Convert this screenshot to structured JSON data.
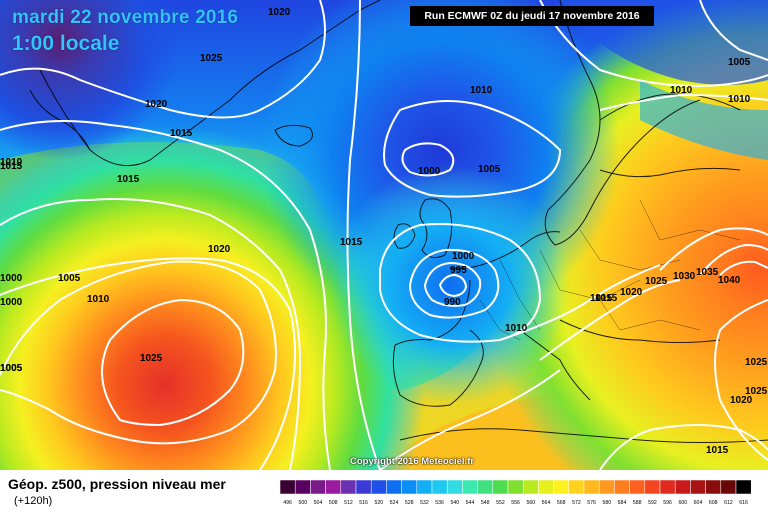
{
  "header": {
    "date": "mardi 22 novembre 2016",
    "time": "1:00 locale"
  },
  "run_info": "Run ECMWF 0Z du jeudi 17 novembre 2016",
  "copyright": "Copyright 2016 Meteociel.fr",
  "legend": {
    "title": "Géop. z500, pression niveau mer",
    "lead": "(+120h)",
    "ticks": [
      "496",
      "500",
      "504",
      "508",
      "512",
      "516",
      "520",
      "524",
      "528",
      "532",
      "536",
      "540",
      "544",
      "548",
      "552",
      "556",
      "560",
      "564",
      "568",
      "572",
      "576",
      "580",
      "584",
      "588",
      "592",
      "596",
      "600",
      "604",
      "608",
      "612",
      "616"
    ],
    "colors": [
      "#3a0033",
      "#5a0060",
      "#7a1a8a",
      "#9a1aa0",
      "#6b2fb0",
      "#3a3ad8",
      "#1f4fe8",
      "#0f6ef0",
      "#0a8ef5",
      "#14aef5",
      "#1fc8f0",
      "#32dce0",
      "#3ae8b0",
      "#40e080",
      "#50dc50",
      "#80e030",
      "#b8ea20",
      "#e6f020",
      "#fff020",
      "#ffd21e",
      "#ffb81e",
      "#ff9a1e",
      "#ff7d1e",
      "#ff6020",
      "#f54420",
      "#e02a20",
      "#c81a1a",
      "#a81414",
      "#880e0e",
      "#6a0808",
      "#000000"
    ]
  },
  "isobar_labels": [
    "1020",
    "1025",
    "1020",
    "1015",
    "1015",
    "1010",
    "1005",
    "1010",
    "1015",
    "1020",
    "1005",
    "1000",
    "1000",
    "1025",
    "1010",
    "1000",
    "1005",
    "1015",
    "1000",
    "995",
    "990",
    "1010",
    "1015",
    "1020",
    "1025",
    "1030",
    "1035",
    "1040",
    "1010",
    "1005",
    "1025",
    "1025",
    "1020",
    "1015",
    "1010",
    "1015",
    "1005"
  ]
}
